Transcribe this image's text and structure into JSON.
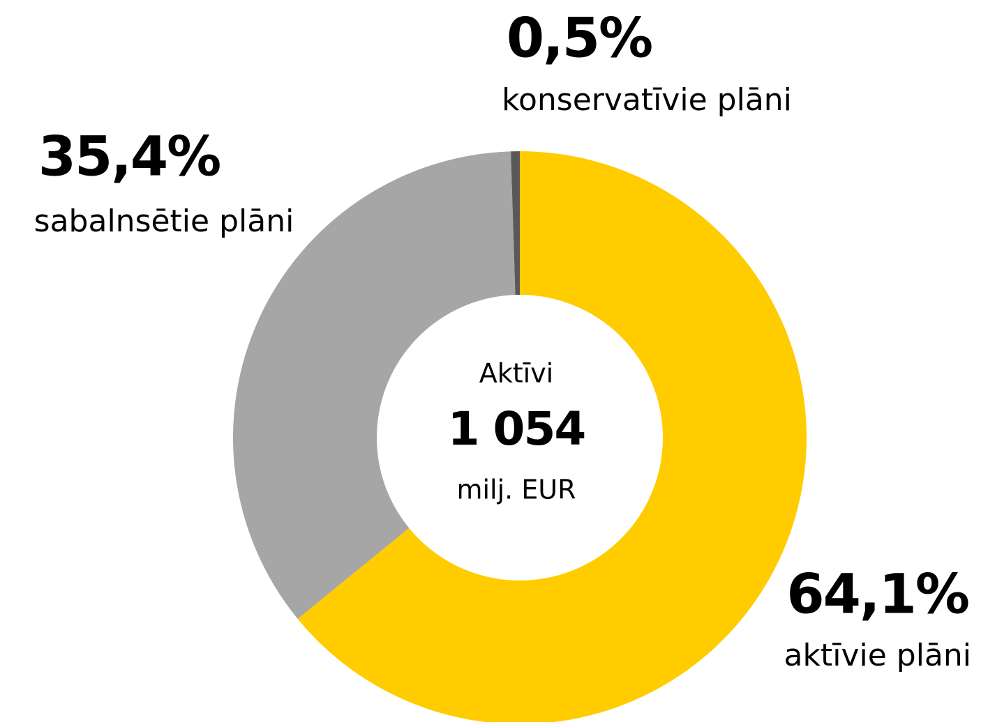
{
  "chart_data": {
    "type": "donut",
    "categories": [
      "aktīvie plāni",
      "sabalnsētie plāni",
      "konservatīvie plāni"
    ],
    "values": [
      64.1,
      35.4,
      0.5
    ],
    "value_labels": [
      "64,1%",
      "35,4%",
      "0,5%"
    ],
    "colors": [
      "#ffcc00",
      "#a6a6a6",
      "#595959"
    ],
    "center_title": "Aktīvi",
    "total": {
      "value": 1054,
      "label": "1 054"
    },
    "center_unit": "milj. EUR"
  }
}
